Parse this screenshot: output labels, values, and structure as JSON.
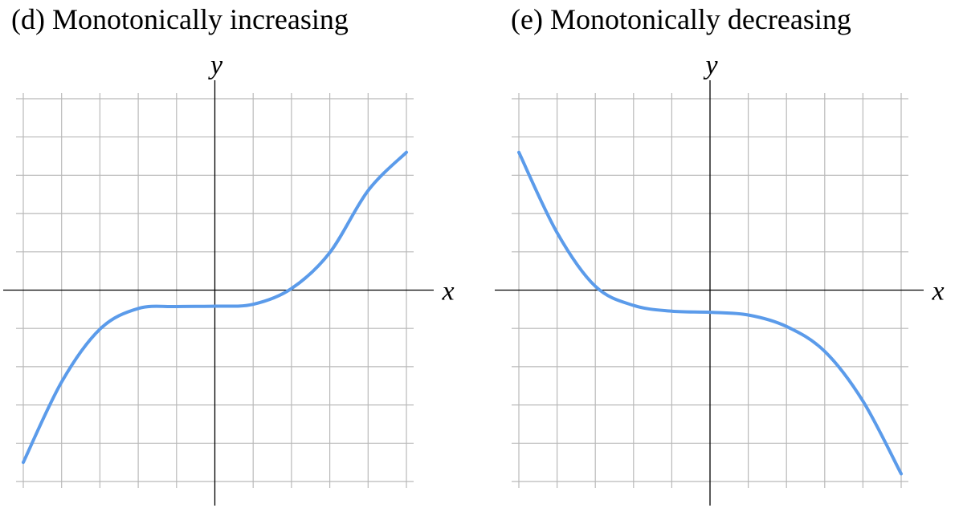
{
  "chart_data": [
    {
      "type": "line",
      "title": "(d) Monotonically increasing",
      "xlabel": "x",
      "ylabel": "y",
      "xlim": [
        -5,
        5
      ],
      "ylim": [
        -5,
        5
      ],
      "grid": true,
      "ticks_labeled": false,
      "series": [
        {
          "color": "#5B9BEA",
          "x": [
            -5,
            -4,
            -3,
            -2,
            -1,
            0,
            1,
            2,
            3,
            4,
            5
          ],
          "y": [
            -4.5,
            -2.4,
            -1.02,
            -0.48,
            -0.43,
            -0.42,
            -0.37,
            0.04,
            0.98,
            2.6,
            3.6
          ]
        }
      ]
    },
    {
      "type": "line",
      "title": "(e) Monotonically decreasing",
      "xlabel": "x",
      "ylabel": "y",
      "xlim": [
        -5,
        5
      ],
      "ylim": [
        -5,
        5
      ],
      "grid": true,
      "ticks_labeled": false,
      "series": [
        {
          "color": "#5B9BEA",
          "x": [
            -5,
            -4,
            -3,
            -2,
            -1,
            0,
            1,
            2,
            3,
            4,
            5
          ],
          "y": [
            3.6,
            1.5,
            0.1,
            -0.4,
            -0.55,
            -0.58,
            -0.65,
            -0.95,
            -1.6,
            -2.9,
            -4.8
          ]
        }
      ]
    }
  ]
}
